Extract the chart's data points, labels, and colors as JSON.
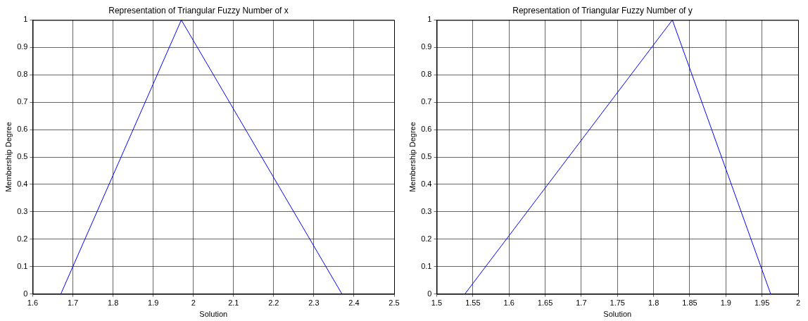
{
  "chart_data": [
    {
      "type": "line",
      "title": "Representation of Triangular Fuzzy Number of x",
      "xlabel": "Solution",
      "ylabel": "Membership Degree",
      "x": [
        1.67,
        1.97,
        2.37
      ],
      "series": [
        {
          "color": "#0000ff",
          "values": [
            0,
            1,
            0
          ]
        }
      ],
      "xlim": [
        1.6,
        2.5
      ],
      "xticks": [
        1.6,
        1.7,
        1.8,
        1.9,
        2,
        2.1,
        2.2,
        2.3,
        2.4,
        2.5
      ],
      "ylim": [
        0,
        1
      ],
      "yticks": [
        0,
        0.1,
        0.2,
        0.3,
        0.4,
        0.5,
        0.6,
        0.7,
        0.8,
        0.9,
        1
      ],
      "grid": true,
      "marker": "none",
      "line_style": "solid"
    },
    {
      "type": "line",
      "title": "Representation of Triangular Fuzzy Number of y",
      "xlabel": "Solution",
      "ylabel": "Membership Degree",
      "x": [
        1.539,
        1.826,
        1.962
      ],
      "series": [
        {
          "color": "#0000ff",
          "values": [
            0,
            1,
            0
          ]
        }
      ],
      "xlim": [
        1.5,
        2
      ],
      "xticks": [
        1.5,
        1.55,
        1.6,
        1.65,
        1.7,
        1.75,
        1.8,
        1.85,
        1.9,
        1.95,
        2
      ],
      "ylim": [
        0,
        1
      ],
      "yticks": [
        0,
        0.1,
        0.2,
        0.3,
        0.4,
        0.5,
        0.6,
        0.7,
        0.8,
        0.9,
        1
      ],
      "grid": true,
      "marker": "none",
      "line_style": "solid"
    }
  ]
}
